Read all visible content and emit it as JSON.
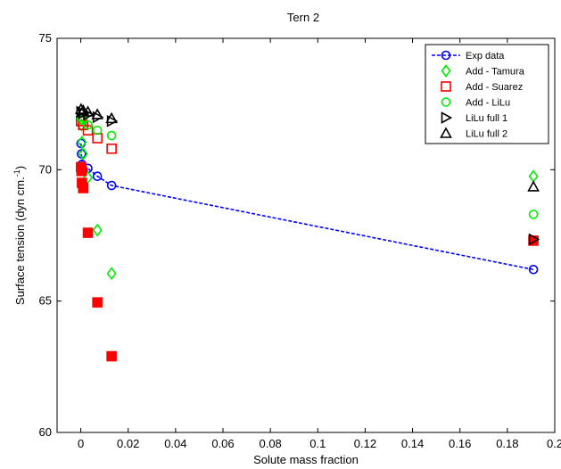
{
  "chart_data": {
    "type": "scatter",
    "title": "Tern 2",
    "xlabel": "Solute mass fraction",
    "ylabel": "Surface tension (dyn cm.",
    "ylabel_sup": "-1",
    "ylabel_end": ")",
    "xlim": [
      -0.01,
      0.2
    ],
    "ylim": [
      60,
      75
    ],
    "xticks": [
      0,
      0.02,
      0.04,
      0.06,
      0.08,
      0.1,
      0.12,
      0.14,
      0.16,
      0.18,
      0.2
    ],
    "xtick_labels": [
      "0",
      "0.02",
      "0.04",
      "0.06",
      "0.08",
      "0.1",
      "0.12",
      "0.14",
      "0.16",
      "0.18",
      "0.2"
    ],
    "yticks": [
      60,
      65,
      70,
      75
    ],
    "ytick_labels": [
      "60",
      "65",
      "70",
      "75"
    ],
    "grid": false,
    "legend_position": "top-right",
    "series": [
      {
        "name": "Exp data",
        "marker": "circle",
        "line": "dashed",
        "color": "#0000ff",
        "filled": false,
        "points": [
          [
            0.0001,
            71.0
          ],
          [
            0.0003,
            70.6
          ],
          [
            0.0005,
            70.2
          ],
          [
            0.001,
            70.0
          ],
          [
            0.003,
            70.05
          ],
          [
            0.007,
            69.75
          ],
          [
            0.013,
            69.4
          ],
          [
            0.191,
            66.2
          ]
        ]
      },
      {
        "name": "Add - Tamura",
        "marker": "diamond",
        "line": "none",
        "color": "#00ee00",
        "filled": false,
        "points": [
          [
            0.0001,
            71.9
          ],
          [
            0.0003,
            71.7
          ],
          [
            0.0005,
            71.05
          ],
          [
            0.001,
            70.6
          ],
          [
            0.003,
            69.7
          ],
          [
            0.007,
            67.7
          ],
          [
            0.013,
            66.05
          ],
          [
            0.191,
            69.75
          ]
        ]
      },
      {
        "name": "Add - Suarez",
        "marker": "square",
        "line": "none",
        "color": "#ff0000",
        "filled": true,
        "points": [
          [
            0.0001,
            70.1
          ],
          [
            0.0003,
            69.95
          ],
          [
            0.0005,
            69.5
          ],
          [
            0.001,
            69.3
          ],
          [
            0.003,
            67.6
          ],
          [
            0.007,
            64.95
          ],
          [
            0.013,
            62.9
          ],
          [
            0.191,
            67.3
          ]
        ]
      },
      {
        "name": "Add - Suarez (open)",
        "marker": "square",
        "line": "none",
        "color": "#ff0000",
        "filled": false,
        "points": [
          [
            0.0001,
            71.85
          ],
          [
            0.001,
            71.7
          ],
          [
            0.003,
            71.5
          ],
          [
            0.007,
            71.2
          ],
          [
            0.013,
            70.8
          ]
        ]
      },
      {
        "name": "Add - LiLu",
        "marker": "circle",
        "line": "none",
        "color": "#00ee00",
        "filled": false,
        "points": [
          [
            0.0001,
            72.0
          ],
          [
            0.001,
            71.9
          ],
          [
            0.003,
            71.7
          ],
          [
            0.007,
            71.5
          ],
          [
            0.013,
            71.3
          ],
          [
            0.191,
            68.3
          ]
        ]
      },
      {
        "name": "LiLu full 1",
        "marker": "triangle-right",
        "line": "none",
        "color": "#000000",
        "filled": false,
        "points": [
          [
            0.0001,
            72.2
          ],
          [
            0.001,
            72.15
          ],
          [
            0.003,
            72.1
          ],
          [
            0.007,
            72.0
          ],
          [
            0.013,
            71.85
          ],
          [
            0.191,
            67.35
          ]
        ]
      },
      {
        "name": "LiLu full 2",
        "marker": "triangle-up",
        "line": "none",
        "color": "#000000",
        "filled": false,
        "points": [
          [
            0.0001,
            72.3
          ],
          [
            0.001,
            72.25
          ],
          [
            0.003,
            72.2
          ],
          [
            0.007,
            72.1
          ],
          [
            0.013,
            71.95
          ],
          [
            0.191,
            69.35
          ]
        ]
      }
    ],
    "legend": [
      "Exp data",
      "Add - Tamura",
      "Add - Suarez",
      "Add - LiLu",
      "LiLu full 1",
      "LiLu full 2"
    ]
  }
}
